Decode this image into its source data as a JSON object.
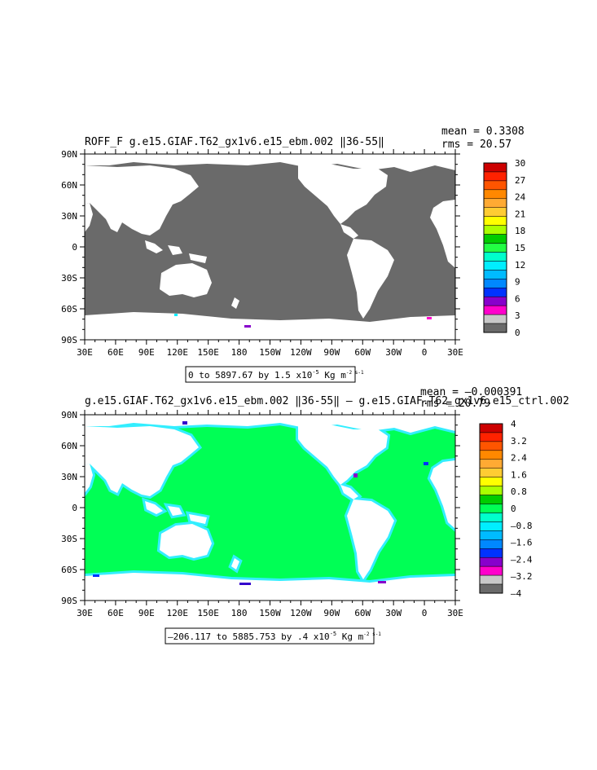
{
  "panel1": {
    "title": "ROFF_F g.e15.GIAF.T62_gx1v6.e15_ebm.002 ‖36-55‖",
    "mean": "mean = 0.3308",
    "rms": "rms = 20.57",
    "range_label": "0 to 5897.67 by 1.5 x10",
    "range_exp": "-5",
    "range_unit": "Kg m",
    "range_unit_exp": "-2 s-1",
    "ocean_color": "#6a6a6a",
    "colorbar": {
      "labels": [
        "30",
        "27",
        "24",
        "21",
        "18",
        "15",
        "12",
        "9",
        "6",
        "3",
        "0"
      ],
      "colors": [
        "#cc0000",
        "#ff2200",
        "#ff5500",
        "#ff8800",
        "#ffaa33",
        "#ffcc33",
        "#ffff00",
        "#aaff00",
        "#00cc00",
        "#22ff44",
        "#00ffcc",
        "#00eeff",
        "#00bbff",
        "#0088ff",
        "#0033ff",
        "#8800cc",
        "#ff00cc",
        "#c8c8c8",
        "#6a6a6a"
      ]
    }
  },
  "panel2": {
    "title": "g.e15.GIAF.T62_gx1v6.e15_ebm.002 ‖36-55‖ – g.e15.GIAF.T62_gx1v6.e15_ctrl.002",
    "mean": "mean = –0.000391",
    "rms": "rms = 20.79",
    "range_label": "–206.117 to 5885.753 by .4 x10",
    "range_exp": "-5",
    "range_unit": "Kg m",
    "range_unit_exp": "-2 s-1",
    "ocean_color": "#00ff55",
    "coast_color": "#33eeff",
    "colorbar": {
      "labels": [
        "4",
        "3.2",
        "2.4",
        "1.6",
        "0.8",
        "0",
        "–0.8",
        "–1.6",
        "–2.4",
        "–3.2",
        "–4"
      ],
      "colors": [
        "#cc0000",
        "#ff2200",
        "#ff5500",
        "#ff8800",
        "#ffaa33",
        "#ffcc33",
        "#ffff00",
        "#aaff00",
        "#00cc00",
        "#00ff55",
        "#00ffcc",
        "#00eeff",
        "#00bbff",
        "#0088ff",
        "#0033ff",
        "#8800cc",
        "#ff00cc",
        "#c8c8c8",
        "#6a6a6a"
      ]
    }
  },
  "axes": {
    "lat_labels": [
      "90N",
      "60N",
      "30N",
      "0",
      "30S",
      "60S",
      "90S"
    ],
    "lon_labels": [
      "30E",
      "60E",
      "90E",
      "120E",
      "150E",
      "180",
      "150W",
      "120W",
      "90W",
      "60W",
      "30W",
      "0",
      "30E"
    ]
  }
}
